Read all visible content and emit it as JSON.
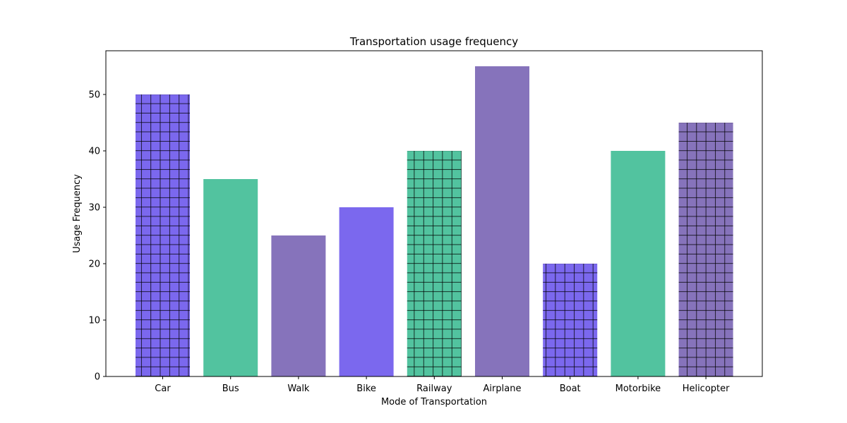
{
  "chart_data": {
    "type": "bar",
    "title": "Transportation usage frequency",
    "xlabel": "Mode of Transportation",
    "ylabel": "Usage Frequency",
    "ylim": [
      0,
      57.75
    ],
    "yticks": [
      0,
      10,
      20,
      30,
      40,
      50
    ],
    "categories": [
      "Car",
      "Bus",
      "Walk",
      "Bike",
      "Railway",
      "Airplane",
      "Boat",
      "Motorbike",
      "Helicopter"
    ],
    "values": [
      50,
      35,
      25,
      30,
      40,
      55,
      20,
      40,
      45
    ],
    "colors": [
      "#7b68ee",
      "#52c39f",
      "#8673bb",
      "#7b68ee",
      "#52c39f",
      "#8673bb",
      "#7b68ee",
      "#52c39f",
      "#8673bb"
    ],
    "hatched": [
      true,
      false,
      false,
      false,
      true,
      false,
      true,
      false,
      true
    ],
    "hatch_pattern": "grid",
    "grid": false
  }
}
